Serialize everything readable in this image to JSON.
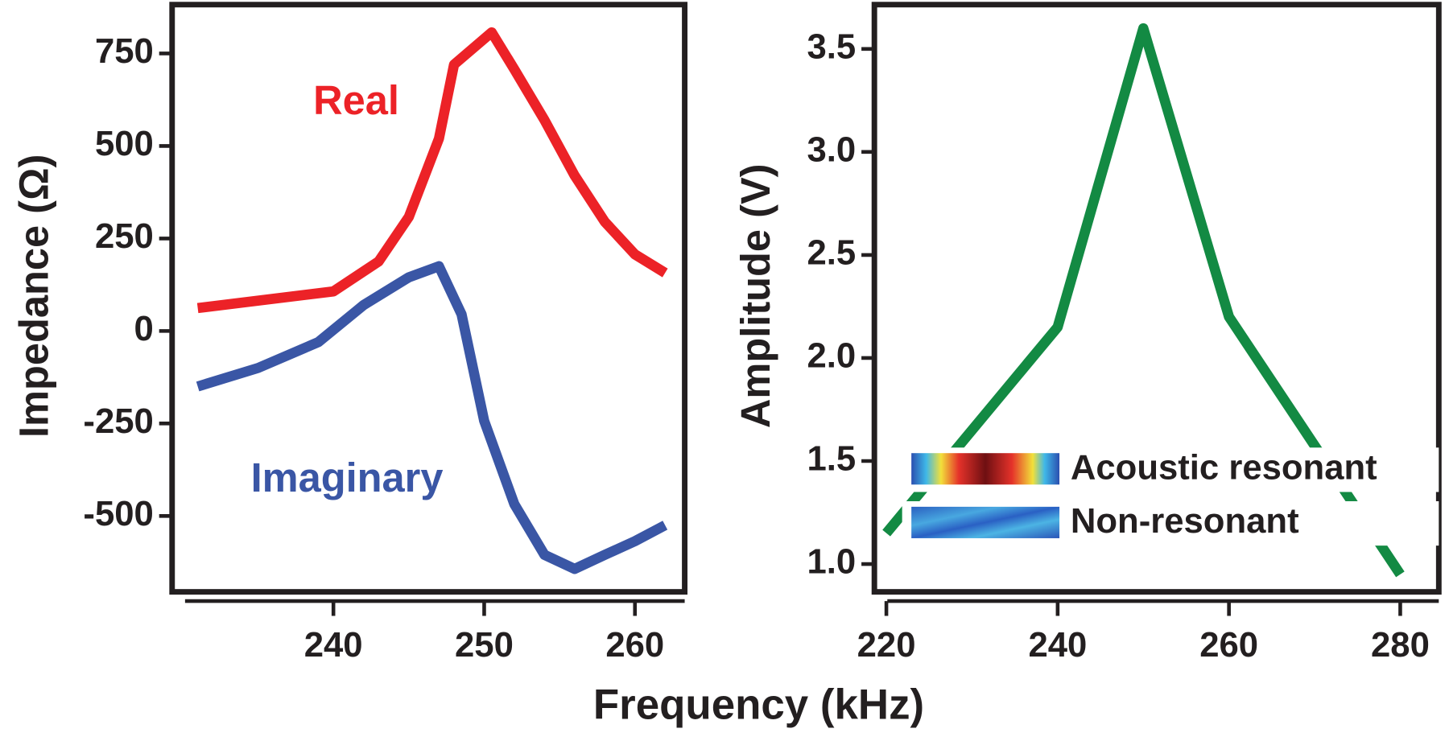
{
  "chart_data": [
    {
      "type": "line",
      "ylabel": "Impedance (Ω)",
      "xlabel": "Frequency (kHz)",
      "xlim": [
        229.3,
        263.3
      ],
      "ylim": [
        -705,
        882
      ],
      "xticks": [
        240,
        250,
        260
      ],
      "yticks": [
        750,
        500,
        250,
        0,
        -250,
        -500
      ],
      "series": [
        {
          "name": "Real",
          "color": "#ec2227",
          "x": [
            231,
            240,
            243,
            245,
            247,
            248,
            250.5,
            252,
            254,
            256,
            258,
            260,
            262
          ],
          "values": [
            62,
            107,
            188,
            308,
            520,
            720,
            807,
            707,
            570,
            420,
            295,
            207,
            157
          ]
        },
        {
          "name": "Imaginary",
          "color": "#3a56a5",
          "x": [
            231,
            235,
            239,
            242,
            245,
            247,
            248.5,
            250,
            252,
            254,
            256,
            258,
            260,
            262
          ],
          "values": [
            -150,
            -100,
            -30,
            70,
            145,
            175,
            45,
            -243,
            -468,
            -605,
            -643,
            -605,
            -568,
            -525
          ]
        }
      ]
    },
    {
      "type": "line",
      "ylabel": "Amplitude (V)",
      "xlim": [
        218.6,
        284.5
      ],
      "ylim": [
        0.865,
        3.715
      ],
      "xticks": [
        220,
        240,
        260,
        280
      ],
      "yticks": [
        3.5,
        {
          "value": 3,
          "label": "3.0"
        },
        2.5,
        {
          "value": 2,
          "label": "2.0"
        },
        1.5,
        {
          "value": 1,
          "label": "1.0"
        }
      ],
      "series": [
        {
          "color": "#138a43",
          "x": [
            220,
            240,
            250,
            260,
            280
          ],
          "values": [
            1.15,
            2.15,
            3.6,
            2.2,
            0.95
          ]
        }
      ],
      "annotations": [
        "Acoustic resonant",
        "Non-resonant"
      ]
    }
  ]
}
